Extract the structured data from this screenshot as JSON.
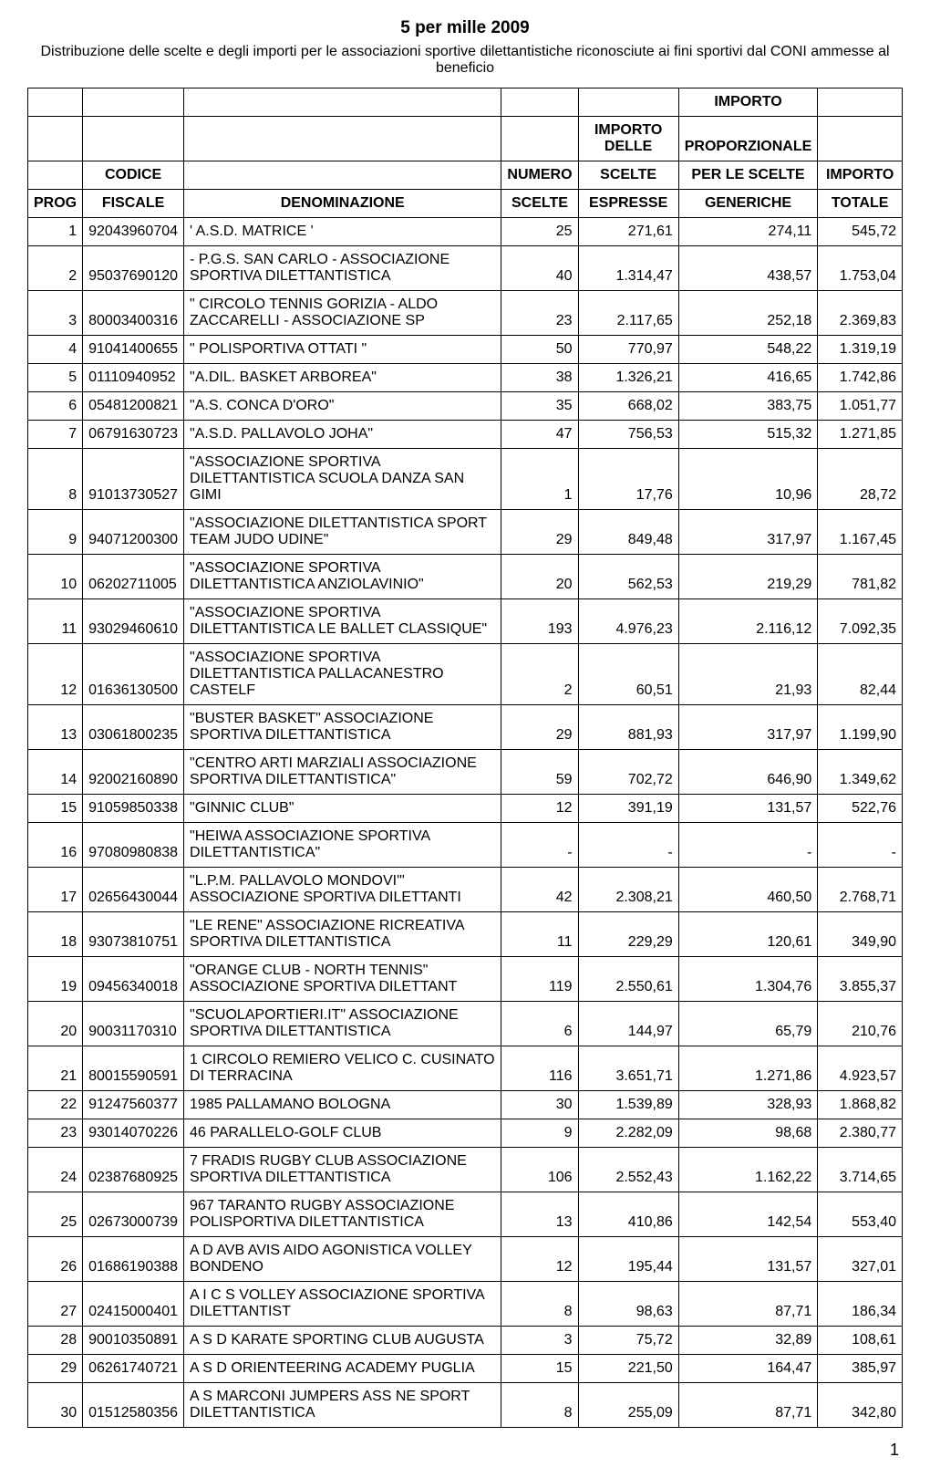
{
  "header": {
    "title": "5 per mille 2009",
    "subtitle": "Distribuzione delle scelte e degli importi per le associazioni sportive dilettantistiche riconosciute ai fini sportivi dal CONI ammesse al beneficio"
  },
  "table": {
    "columns": {
      "prog": "PROG",
      "codice_h1": "CODICE",
      "codice_h2": "FISCALE",
      "denom": "DENOMINAZIONE",
      "numero_h1": "NUMERO",
      "numero_h2": "SCELTE",
      "importo_delle_h1": "IMPORTO DELLE",
      "importo_delle_h2": "SCELTE",
      "importo_delle_h3": "ESPRESSE",
      "importo_prop_h1": "IMPORTO",
      "importo_prop_h2": "PROPORZIONALE",
      "importo_prop_h3": "PER LE SCELTE",
      "importo_prop_h4": "GENERICHE",
      "totale_h1": "IMPORTO",
      "totale_h2": "TOTALE"
    },
    "rows": [
      {
        "prog": "1",
        "codice": "92043960704",
        "denom": "' A.S.D. MATRICE '",
        "numero": "25",
        "scelte": "271,61",
        "prop": "274,11",
        "totale": "545,72"
      },
      {
        "prog": "2",
        "codice": "95037690120",
        "denom": "- P.G.S. SAN CARLO - ASSOCIAZIONE SPORTIVA DILETTANTISTICA",
        "numero": "40",
        "scelte": "1.314,47",
        "prop": "438,57",
        "totale": "1.753,04"
      },
      {
        "prog": "3",
        "codice": "80003400316",
        "denom": "\" CIRCOLO TENNIS GORIZIA - ALDO ZACCARELLI - ASSOCIAZIONE SP",
        "numero": "23",
        "scelte": "2.117,65",
        "prop": "252,18",
        "totale": "2.369,83"
      },
      {
        "prog": "4",
        "codice": "91041400655",
        "denom": "\" POLISPORTIVA OTTATI \"",
        "numero": "50",
        "scelte": "770,97",
        "prop": "548,22",
        "totale": "1.319,19"
      },
      {
        "prog": "5",
        "codice": "01110940952",
        "denom": "\"A.DIL. BASKET ARBOREA\"",
        "numero": "38",
        "scelte": "1.326,21",
        "prop": "416,65",
        "totale": "1.742,86"
      },
      {
        "prog": "6",
        "codice": "05481200821",
        "denom": "\"A.S. CONCA D'ORO\"",
        "numero": "35",
        "scelte": "668,02",
        "prop": "383,75",
        "totale": "1.051,77"
      },
      {
        "prog": "7",
        "codice": "06791630723",
        "denom": "\"A.S.D. PALLAVOLO JOHA\"",
        "numero": "47",
        "scelte": "756,53",
        "prop": "515,32",
        "totale": "1.271,85"
      },
      {
        "prog": "8",
        "codice": "91013730527",
        "denom": "\"ASSOCIAZIONE SPORTIVA DILETTANTISTICA SCUOLA DANZA SAN GIMI",
        "numero": "1",
        "scelte": "17,76",
        "prop": "10,96",
        "totale": "28,72"
      },
      {
        "prog": "9",
        "codice": "94071200300",
        "denom": "\"ASSOCIAZIONE DILETTANTISTICA SPORT TEAM JUDO UDINE\"",
        "numero": "29",
        "scelte": "849,48",
        "prop": "317,97",
        "totale": "1.167,45"
      },
      {
        "prog": "10",
        "codice": "06202711005",
        "denom": "\"ASSOCIAZIONE SPORTIVA DILETTANTISTICA ANZIOLAVINIO\"",
        "numero": "20",
        "scelte": "562,53",
        "prop": "219,29",
        "totale": "781,82"
      },
      {
        "prog": "11",
        "codice": "93029460610",
        "denom": "\"ASSOCIAZIONE SPORTIVA DILETTANTISTICA LE BALLET CLASSIQUE\"",
        "numero": "193",
        "scelte": "4.976,23",
        "prop": "2.116,12",
        "totale": "7.092,35"
      },
      {
        "prog": "12",
        "codice": "01636130500",
        "denom": "\"ASSOCIAZIONE SPORTIVA DILETTANTISTICA PALLACANESTRO CASTELF",
        "numero": "2",
        "scelte": "60,51",
        "prop": "21,93",
        "totale": "82,44"
      },
      {
        "prog": "13",
        "codice": "03061800235",
        "denom": "\"BUSTER BASKET\" ASSOCIAZIONE SPORTIVA DILETTANTISTICA",
        "numero": "29",
        "scelte": "881,93",
        "prop": "317,97",
        "totale": "1.199,90"
      },
      {
        "prog": "14",
        "codice": "92002160890",
        "denom": "\"CENTRO ARTI MARZIALI ASSOCIAZIONE SPORTIVA DILETTANTISTICA\"",
        "numero": "59",
        "scelte": "702,72",
        "prop": "646,90",
        "totale": "1.349,62"
      },
      {
        "prog": "15",
        "codice": "91059850338",
        "denom": "\"GINNIC CLUB\"",
        "numero": "12",
        "scelte": "391,19",
        "prop": "131,57",
        "totale": "522,76"
      },
      {
        "prog": "16",
        "codice": "97080980838",
        "denom": "\"HEIWA ASSOCIAZIONE SPORTIVA DILETTANTISTICA\"",
        "numero": "-",
        "scelte": "-",
        "prop": "-",
        "totale": "-"
      },
      {
        "prog": "17",
        "codice": "02656430044",
        "denom": "\"L.P.M. PALLAVOLO MONDOVI'\" ASSOCIAZIONE SPORTIVA DILETTANTI",
        "numero": "42",
        "scelte": "2.308,21",
        "prop": "460,50",
        "totale": "2.768,71"
      },
      {
        "prog": "18",
        "codice": "93073810751",
        "denom": "\"LE RENE\" ASSOCIAZIONE RICREATIVA SPORTIVA DILETTANTISTICA",
        "numero": "11",
        "scelte": "229,29",
        "prop": "120,61",
        "totale": "349,90"
      },
      {
        "prog": "19",
        "codice": "09456340018",
        "denom": "\"ORANGE CLUB - NORTH TENNIS\" ASSOCIAZIONE SPORTIVA DILETTANT",
        "numero": "119",
        "scelte": "2.550,61",
        "prop": "1.304,76",
        "totale": "3.855,37"
      },
      {
        "prog": "20",
        "codice": "90031170310",
        "denom": "\"SCUOLAPORTIERI.IT\" ASSOCIAZIONE SPORTIVA DILETTANTISTICA",
        "numero": "6",
        "scelte": "144,97",
        "prop": "65,79",
        "totale": "210,76"
      },
      {
        "prog": "21",
        "codice": "80015590591",
        "denom": "1 CIRCOLO REMIERO VELICO C. CUSINATO DI TERRACINA",
        "numero": "116",
        "scelte": "3.651,71",
        "prop": "1.271,86",
        "totale": "4.923,57"
      },
      {
        "prog": "22",
        "codice": "91247560377",
        "denom": "1985 PALLAMANO BOLOGNA",
        "numero": "30",
        "scelte": "1.539,89",
        "prop": "328,93",
        "totale": "1.868,82"
      },
      {
        "prog": "23",
        "codice": "93014070226",
        "denom": "46 PARALLELO-GOLF CLUB",
        "numero": "9",
        "scelte": "2.282,09",
        "prop": "98,68",
        "totale": "2.380,77"
      },
      {
        "prog": "24",
        "codice": "02387680925",
        "denom": "7 FRADIS RUGBY CLUB ASSOCIAZIONE SPORTIVA DILETTANTISTICA",
        "numero": "106",
        "scelte": "2.552,43",
        "prop": "1.162,22",
        "totale": "3.714,65"
      },
      {
        "prog": "25",
        "codice": "02673000739",
        "denom": "967 TARANTO RUGBY ASSOCIAZIONE POLISPORTIVA DILETTANTISTICA",
        "numero": "13",
        "scelte": "410,86",
        "prop": "142,54",
        "totale": "553,40"
      },
      {
        "prog": "26",
        "codice": "01686190388",
        "denom": "A D AVB AVIS AIDO AGONISTICA VOLLEY BONDENO",
        "numero": "12",
        "scelte": "195,44",
        "prop": "131,57",
        "totale": "327,01"
      },
      {
        "prog": "27",
        "codice": "02415000401",
        "denom": "A I C S VOLLEY ASSOCIAZIONE SPORTIVA DILETTANTIST",
        "numero": "8",
        "scelte": "98,63",
        "prop": "87,71",
        "totale": "186,34"
      },
      {
        "prog": "28",
        "codice": "90010350891",
        "denom": "A S D KARATE SPORTING CLUB AUGUSTA",
        "numero": "3",
        "scelte": "75,72",
        "prop": "32,89",
        "totale": "108,61"
      },
      {
        "prog": "29",
        "codice": "06261740721",
        "denom": "A S D ORIENTEERING ACADEMY PUGLIA",
        "numero": "15",
        "scelte": "221,50",
        "prop": "164,47",
        "totale": "385,97"
      },
      {
        "prog": "30",
        "codice": "01512580356",
        "denom": "A S MARCONI JUMPERS ASS NE SPORT DILETTANTISTICA",
        "numero": "8",
        "scelte": "255,09",
        "prop": "87,71",
        "totale": "342,80"
      }
    ]
  },
  "footer": {
    "page_number": "1"
  },
  "style": {
    "font_family": "Arial, Helvetica, sans-serif",
    "title_fontsize": 19,
    "subtitle_fontsize": 16,
    "table_fontsize": 16,
    "border_color": "#000000",
    "background_color": "#ffffff",
    "text_color": "#000000",
    "col_widths": {
      "prog": 50,
      "codice": 110,
      "denom": 420,
      "numero": 82,
      "importo_delle": 115,
      "importo_prop": 120,
      "totale": 95
    }
  }
}
